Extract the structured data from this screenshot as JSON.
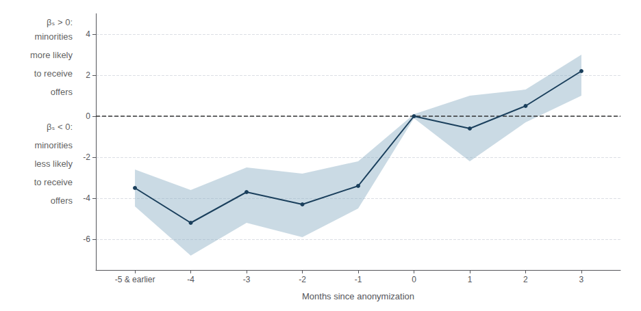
{
  "chart_data": {
    "type": "line",
    "x": [
      -5,
      -4,
      -3,
      -2,
      -1,
      0,
      1,
      2,
      3
    ],
    "values": [
      -3.5,
      -5.2,
      -3.7,
      -4.3,
      -3.4,
      0.0,
      -0.6,
      0.5,
      2.2
    ],
    "color": "#1a3f5c",
    "marker": "circle",
    "ci_lower": [
      -4.4,
      -6.8,
      -5.2,
      -5.9,
      -4.5,
      -0.1,
      -2.2,
      -0.3,
      1.0
    ],
    "ci_upper": [
      -2.6,
      -3.6,
      -2.5,
      -2.8,
      -2.2,
      0.1,
      1.0,
      1.3,
      3.0
    ],
    "ci_color": "#8aaec4",
    "xlabel": "Months since anonymization",
    "xlim": [
      -5.7,
      3.7
    ],
    "xticks": [
      {
        "value": -5,
        "label": "-5 & earlier"
      },
      -4,
      -3,
      -2,
      -1,
      0,
      1,
      2,
      3
    ],
    "ylim": [
      -7.5,
      5.0
    ],
    "yticks": [
      -6,
      -4,
      -2,
      0,
      2,
      4
    ],
    "grid": true,
    "hline": {
      "y": 0,
      "line_style": "dashed",
      "color": "#333333"
    },
    "annotations": [
      {
        "text": "βₛ > 0:",
        "y": 4.6
      },
      {
        "text": "minorities",
        "y": 3.9
      },
      {
        "text": "more likely",
        "y": 3.0
      },
      {
        "text": "to receive",
        "y": 2.1
      },
      {
        "text": "offers",
        "y": 1.2
      },
      {
        "text": "βₛ < 0:",
        "y": -0.5
      },
      {
        "text": "minorities",
        "y": -1.4
      },
      {
        "text": "less likely",
        "y": -2.3
      },
      {
        "text": "to receive",
        "y": -3.2
      },
      {
        "text": "offers",
        "y": -4.1
      }
    ]
  }
}
